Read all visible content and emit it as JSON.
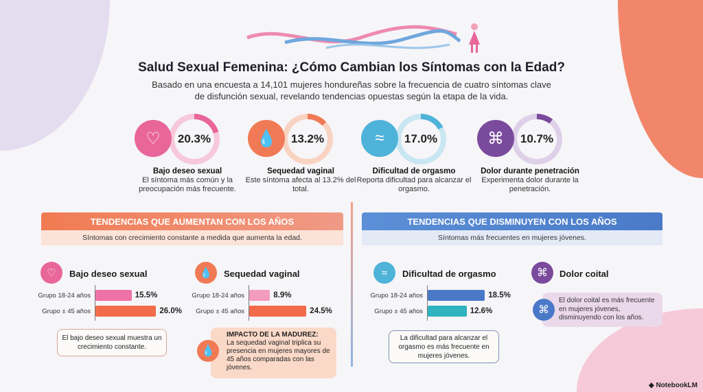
{
  "title": "Salud Sexual Femenina: ¿Cómo Cambian los Síntomas con la Edad?",
  "subtitle": [
    "Basado en una encuesta a 14,101 mujeres hondureñas sobre la frecuencia de cuatro síntomas clave",
    "de disfunción sexual, revelando tendencias opuestas según la etapa de la vida."
  ],
  "stats": [
    {
      "icon": "heart-down-icon",
      "value": "20.3%",
      "pct": 20.3,
      "name": "Bajo deseo sexual",
      "desc": "El síntoma más común y la preocupación más frecuente.",
      "color": "#e8669a",
      "ring": "#f6c8da"
    },
    {
      "icon": "droplet-icon",
      "value": "13.2%",
      "pct": 13.2,
      "name": "Sequedad vaginal",
      "desc": "Este síntoma afecta al 13.2% del total.",
      "color": "#f07a55",
      "ring": "#f9d3c2"
    },
    {
      "icon": "wave-icon",
      "value": "17.0%",
      "pct": 17.0,
      "name": "Dificultad de orgasmo",
      "desc": "Reporta dificultad para alcanzar el orgasmo.",
      "color": "#4fb3d9",
      "ring": "#c9e7f2"
    },
    {
      "icon": "knot-icon",
      "value": "10.7%",
      "pct": 10.7,
      "name": "Dolor durante penetración",
      "desc": "Experimenta dolor durante la penetración.",
      "color": "#7a4a9c",
      "ring": "#ddd0e8"
    }
  ],
  "left": {
    "header": "TENDENCIAS QUE AUMENTAN CON LOS AÑOS",
    "sub": "Síntomas con crecimiento constante a medida que aumenta la edad."
  },
  "right": {
    "header": "TENDENCIAS QUE DISMINUYEN CON LOS AÑOS",
    "sub": "Síntomas más frecuentes en mujeres jóvenes."
  },
  "charts": [
    {
      "title": "Bajo deseo sexual",
      "groups": [
        "Grupo 18-24 años",
        "Grupo ± 45 años"
      ],
      "values": [
        15.5,
        26.0
      ],
      "labels": [
        "15.5%",
        "26.0%"
      ],
      "colors": [
        "#ef72a6",
        "#f26b4a"
      ]
    },
    {
      "title": "Sequedad vaginal",
      "groups": [
        "Grupo 18-24 años",
        "Grupo ± 45 años"
      ],
      "values": [
        8.9,
        24.5
      ],
      "labels": [
        "8.9%",
        "24.5%"
      ],
      "colors": [
        "#f39cbd",
        "#f26b4a"
      ]
    },
    {
      "title": "Dificultad de orgasmo",
      "groups": [
        "Grupo 18-24 años",
        "Grupo ± 45 años"
      ],
      "values": [
        18.5,
        12.6
      ],
      "labels": [
        "18.5%",
        "12.6%"
      ],
      "colors": [
        "#4a79c8",
        "#2fb3bf"
      ]
    }
  ],
  "callouts": {
    "deseo": "El bajo deseo sexual muestra un crecimiento constante.",
    "impacto_title": "IMPACTO DE LA MADUREZ:",
    "impacto": "La sequedad vaginal triplica su presencia en mujeres mayores de 45 años comparadas con las jóvenes.",
    "orgasmo": "La dificultad para alcanzar el orgasmo es más frecuente en mujeres jóvenes.",
    "coital_title": "Dolor coital",
    "coital": "El dolor coital es más frecuente en mujeres jóvenes, disminuyendo con los años."
  },
  "brand": "NotebookLM"
}
